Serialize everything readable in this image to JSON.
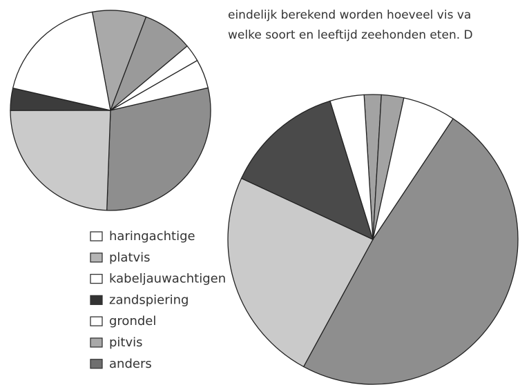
{
  "chart_data": [
    {
      "type": "pie",
      "values": [
        8.7,
        8.1,
        2.8,
        4.7,
        29.2,
        24.4,
        3.6,
        18.5
      ],
      "colors": [
        "#a9a9a9",
        "#9a9a9a",
        "#ffffff",
        "#ffffff",
        "#8e8e8e",
        "#cacaca",
        "#3c3c3c",
        "#ffffff"
      ]
    },
    {
      "type": "pie",
      "values": [
        1.9,
        2.5,
        5.9,
        48.6,
        24.0,
        13.3,
        3.8
      ],
      "colors": [
        "#a3a3a3",
        "#a3a3a3",
        "#ffffff",
        "#8e8e8e",
        "#cacaca",
        "#4a4a4a",
        "#ffffff"
      ]
    }
  ],
  "legend": [
    {
      "name": "haringachtige",
      "color": "#ffffff"
    },
    {
      "name": "platvis",
      "color": "#b5b5b5"
    },
    {
      "name": "kabeljauwachtigen",
      "color": "#ffffff"
    },
    {
      "name": "zandspiering",
      "color": "#333333"
    },
    {
      "name": "grondel",
      "color": "#ffffff"
    },
    {
      "name": "pitvis",
      "color": "#a8a8a8"
    },
    {
      "name": "anders",
      "color": "#6f6f6f"
    }
  ],
  "text_lines": [
    "eindelijk berekend worden hoeveel vis va",
    "welke soort en leeftijd zeehonden eten. D"
  ]
}
